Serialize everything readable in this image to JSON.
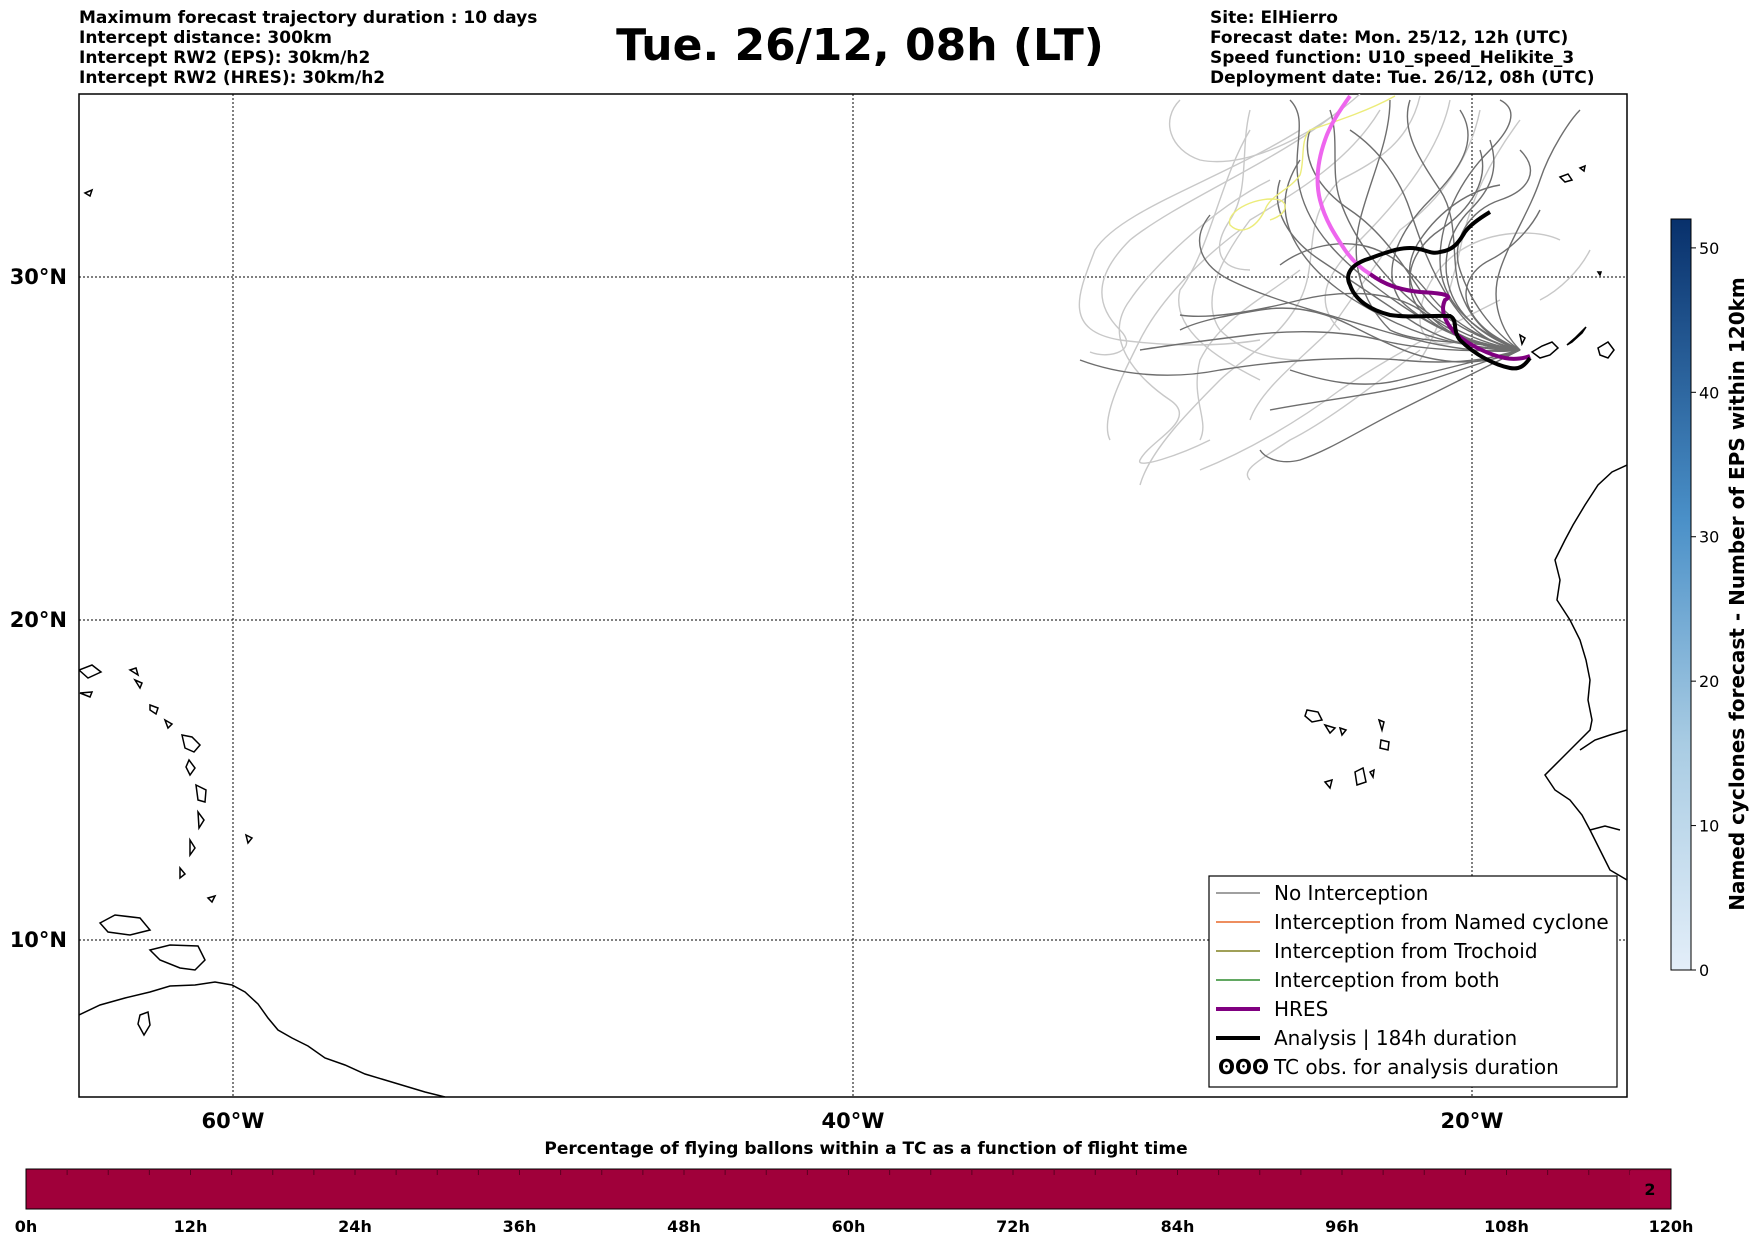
{
  "header": {
    "left_lines": [
      "Maximum forecast trajectory duration : 10 days",
      "Intercept distance: 300km",
      "Intercept RW2 (EPS):  30km/h2",
      "Intercept RW2 (HRES): 30km/h2"
    ],
    "title": "Tue. 26/12, 08h (LT)",
    "right_lines": [
      "Site: ElHierro",
      "Forecast date: Mon. 25/12, 12h (UTC)",
      "Speed function: U10_speed_Helikite_3",
      "Deployment date: Tue. 26/12, 08h (UTC)"
    ]
  },
  "map": {
    "lat_labels": [
      "30°N",
      "20°N",
      "10°N"
    ],
    "lon_labels": [
      "60°W",
      "40°W",
      "20°W"
    ],
    "legend": [
      {
        "label": "No Interception",
        "color": "#808080",
        "style": "thin"
      },
      {
        "label": "Interception from Named cyclone",
        "color": "#e8692a",
        "style": "thin"
      },
      {
        "label": "Interception from Trochoid",
        "color": "#808020",
        "style": "thin"
      },
      {
        "label": "Interception from both",
        "color": "#2e8b2e",
        "style": "thin"
      },
      {
        "label": "HRES",
        "color": "#800080",
        "style": "thick"
      },
      {
        "label": "Analysis | 184h duration",
        "color": "#000000",
        "style": "thick"
      },
      {
        "label": "TC obs. for analysis duration",
        "color": "#000000",
        "style": "symbol",
        "symbol": "ʘʘʘ"
      }
    ]
  },
  "colorbar": {
    "title": "Named cyclones forecast - Number of EPS within 120km",
    "ticks": [
      "0",
      "10",
      "20",
      "30",
      "40",
      "50"
    ],
    "max": 52,
    "color_low": "#e3eef9",
    "color_high": "#08306b"
  },
  "timebar": {
    "title": "Percentage of flying ballons within a TC as a function of flight time",
    "ticks": [
      "0h",
      "12h",
      "24h",
      "36h",
      "48h",
      "60h",
      "72h",
      "84h",
      "96h",
      "108h",
      "120h"
    ],
    "fill_color": "#a0003a",
    "end_value": "2"
  }
}
